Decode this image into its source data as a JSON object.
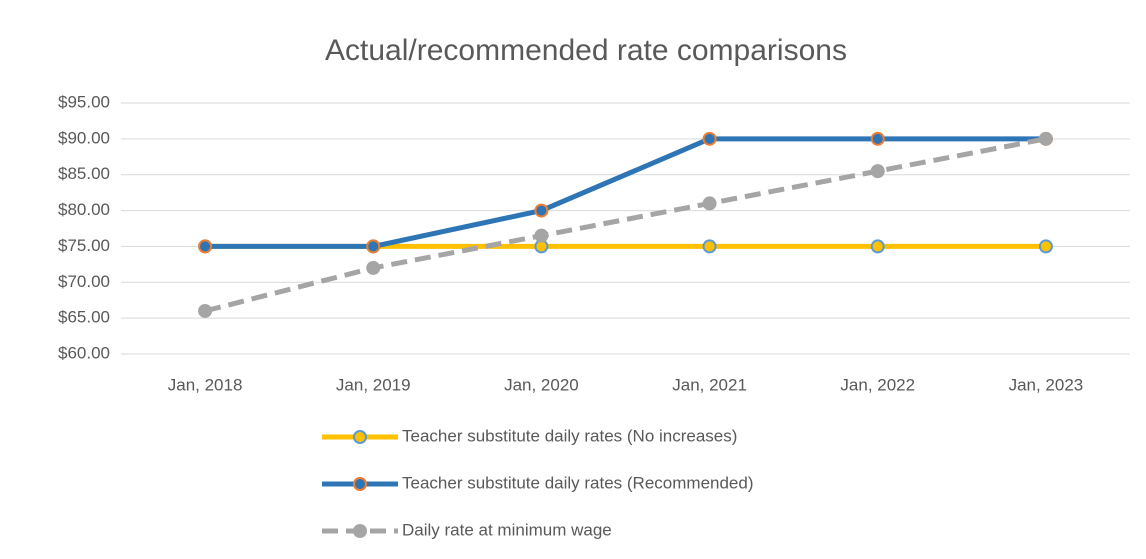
{
  "chart_data": {
    "type": "line",
    "title": "Actual/recommended rate comparisons",
    "categories": [
      "Jan, 2018",
      "Jan, 2019",
      "Jan, 2020",
      "Jan, 2021",
      "Jan, 2022",
      "Jan, 2023"
    ],
    "series": [
      {
        "name": "Teacher substitute daily rates (No increases)",
        "color": "#FFC000",
        "marker_fill": "#FFC000",
        "marker_stroke": "#5B9BD5",
        "dashed": false,
        "values": [
          75,
          75,
          75,
          75,
          75,
          75
        ]
      },
      {
        "name": "Teacher substitute daily rates (Recommended)",
        "color": "#2E75B6",
        "marker_fill": "#2E75B6",
        "marker_stroke": "#ED7D31",
        "dashed": false,
        "values": [
          75,
          75,
          80,
          90,
          90,
          90
        ]
      },
      {
        "name": "Daily rate at minimum wage",
        "color": "#A5A5A5",
        "marker_fill": "#A5A5A5",
        "marker_stroke": "#A5A5A5",
        "dashed": true,
        "values": [
          66,
          72,
          76.5,
          81,
          85.5,
          90
        ]
      }
    ],
    "ylim": [
      60,
      95
    ],
    "yticks": [
      {
        "value": 60,
        "label": "$60.00"
      },
      {
        "value": 65,
        "label": "$65.00"
      },
      {
        "value": 70,
        "label": "$70.00"
      },
      {
        "value": 75,
        "label": "$75.00"
      },
      {
        "value": 80,
        "label": "$80.00"
      },
      {
        "value": 85,
        "label": "$85.00"
      },
      {
        "value": 90,
        "label": "$90.00"
      },
      {
        "value": 95,
        "label": "$95.00"
      }
    ],
    "grid": true,
    "legend": "bottom"
  }
}
